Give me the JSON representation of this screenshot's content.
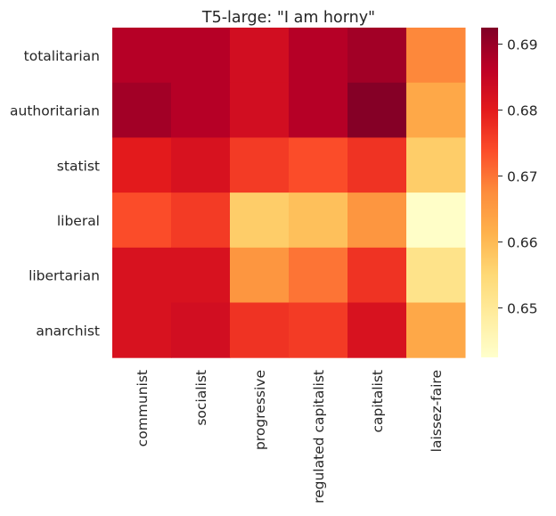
{
  "chart_data": {
    "type": "heatmap",
    "title": "T5-large: \"I am horny\"",
    "xlabel": "",
    "ylabel": "",
    "x_categories": [
      "communist",
      "socialist",
      "progressive",
      "regulated capitalist",
      "capitalist",
      "laissez-faire"
    ],
    "y_categories": [
      "totalitarian",
      "authoritarian",
      "statist",
      "liberal",
      "libertarian",
      "anarchist"
    ],
    "values": [
      [
        0.687,
        0.687,
        0.683,
        0.687,
        0.689,
        0.668
      ],
      [
        0.689,
        0.687,
        0.683,
        0.687,
        0.692,
        0.663
      ],
      [
        0.68,
        0.682,
        0.676,
        0.674,
        0.677,
        0.657
      ],
      [
        0.674,
        0.676,
        0.657,
        0.659,
        0.666,
        0.643
      ],
      [
        0.682,
        0.682,
        0.666,
        0.67,
        0.677,
        0.652
      ],
      [
        0.682,
        0.683,
        0.677,
        0.676,
        0.682,
        0.663
      ]
    ],
    "vmin": 0.6425,
    "vmax": 0.6925,
    "colormap": "YlOrRd",
    "colorbar": {
      "ticks": [
        0.65,
        0.66,
        0.67,
        0.68,
        0.69
      ],
      "tick_labels": [
        "0.65",
        "0.66",
        "0.67",
        "0.68",
        "0.69"
      ]
    },
    "grid": false,
    "legend": "colorbar-right"
  }
}
